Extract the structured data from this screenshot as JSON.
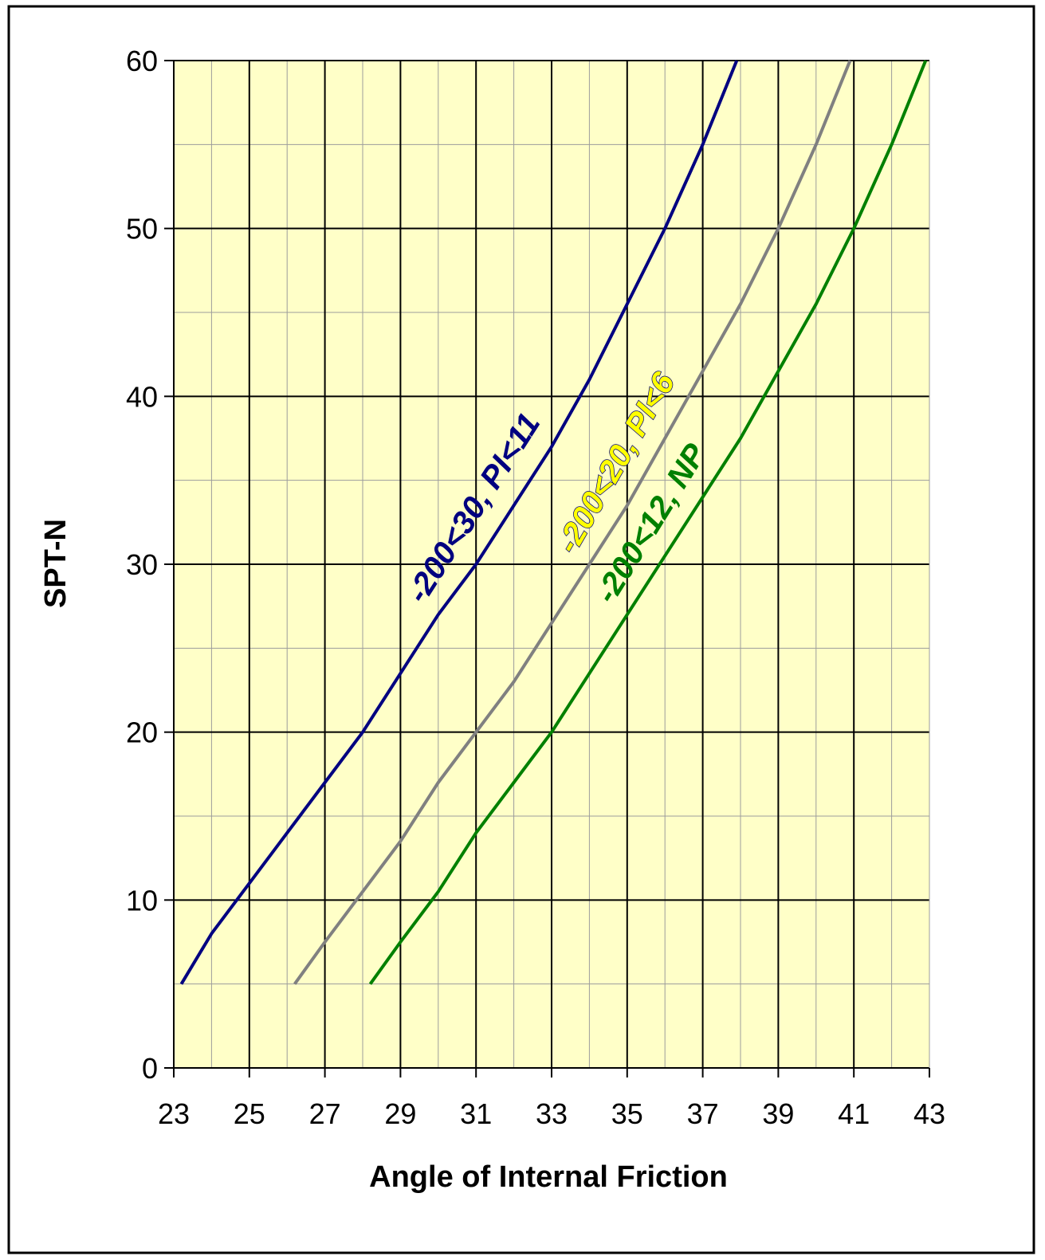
{
  "chart_data": {
    "type": "line",
    "title": "",
    "xlabel": "Angle of Internal Friction",
    "ylabel": "SPT-N",
    "xlim": [
      23,
      43
    ],
    "ylim": [
      0,
      60
    ],
    "x_ticks": [
      "23",
      "25",
      "27",
      "29",
      "31",
      "33",
      "35",
      "37",
      "39",
      "41",
      "43"
    ],
    "y_ticks": [
      "0",
      "10",
      "20",
      "30",
      "40",
      "50",
      "60"
    ],
    "grid": true,
    "legend": "none",
    "colors": {
      "plot_background": "#ffffc8",
      "major_grid": "#000000",
      "minor_grid": "#9c9c9c"
    },
    "series": [
      {
        "name": "-200<30, PI<11",
        "color": "#000080",
        "label_fill": "#000080",
        "label_outline": "none",
        "x": [
          23.2,
          24.0,
          25.0,
          26.0,
          27.0,
          28.0,
          29.0,
          30.0,
          31.0,
          32.0,
          33.0,
          34.0,
          35.0,
          36.0,
          37.0,
          37.9
        ],
        "y": [
          5,
          8,
          11,
          14,
          17,
          20,
          23.5,
          27,
          30,
          33.5,
          37,
          41,
          45.5,
          50,
          55,
          60
        ]
      },
      {
        "name": "-200<20, PI<6",
        "color": "#808080",
        "label_fill": "#ffff00",
        "label_outline": "#000080",
        "x": [
          26.2,
          27.0,
          28.0,
          29.0,
          30.0,
          31.0,
          32.0,
          33.0,
          34.0,
          35.0,
          36.0,
          37.0,
          38.0,
          39.0,
          40.0,
          40.9
        ],
        "y": [
          5,
          7.5,
          10.5,
          13.5,
          17,
          20,
          23,
          26.5,
          30,
          33.5,
          37.5,
          41.5,
          45.5,
          50,
          55,
          60
        ]
      },
      {
        "name": "-200<12, NP",
        "color": "#008000",
        "label_fill": "#008000",
        "label_outline": "none",
        "x": [
          28.2,
          29.0,
          30.0,
          31.0,
          32.0,
          33.0,
          34.0,
          35.0,
          36.0,
          37.0,
          38.0,
          39.0,
          40.0,
          41.0,
          42.0,
          42.9
        ],
        "y": [
          5,
          7.5,
          10.5,
          14,
          17,
          20,
          23.5,
          27,
          30.5,
          34,
          37.5,
          41.5,
          45.5,
          50,
          55,
          60
        ]
      }
    ]
  }
}
